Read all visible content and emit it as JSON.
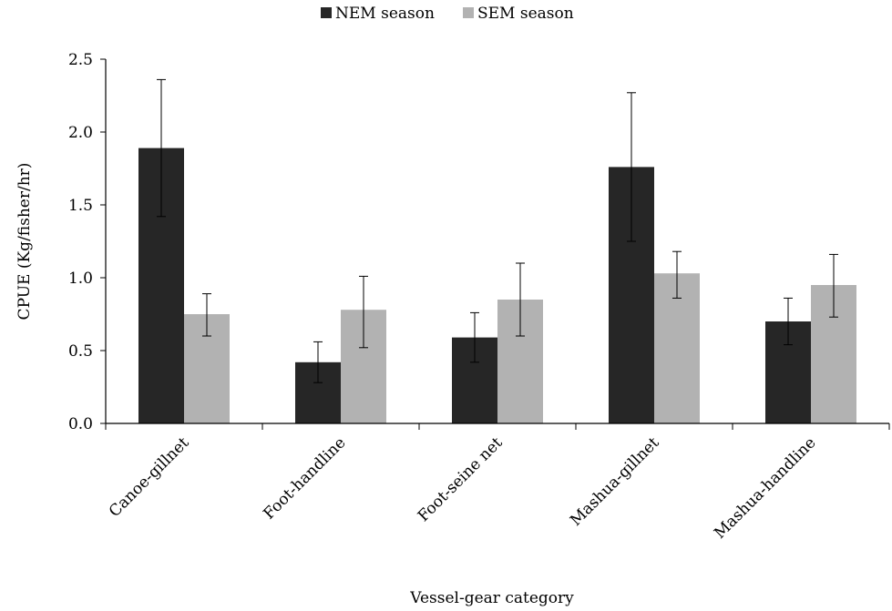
{
  "chart_data": {
    "type": "bar",
    "title": "",
    "xlabel": "Vessel-gear category",
    "ylabel": "CPUE (Kg/fisher/hr)",
    "categories": [
      "Canoe-gillnet",
      "Foot-handline",
      "Foot-seine net",
      "Mashua-gillnet",
      "Mashua-handline"
    ],
    "series": [
      {
        "name": "NEM season",
        "color": "#262626",
        "values": [
          1.89,
          0.42,
          0.59,
          1.76,
          0.7
        ],
        "err_low": [
          1.42,
          0.28,
          0.42,
          1.25,
          0.54
        ],
        "err_high": [
          2.36,
          0.56,
          0.76,
          2.27,
          0.86
        ]
      },
      {
        "name": "SEM season",
        "color": "#b2b2b2",
        "values": [
          0.75,
          0.78,
          0.85,
          1.03,
          0.95
        ],
        "err_low": [
          0.6,
          0.52,
          0.6,
          0.86,
          0.73
        ],
        "err_high": [
          0.89,
          1.01,
          1.1,
          1.18,
          1.16
        ]
      }
    ],
    "ylim": [
      0,
      2.5
    ],
    "yticks": [
      "0.0",
      "0.5",
      "1.0",
      "1.5",
      "2.0",
      "2.5"
    ],
    "legend_position": "top-center",
    "grid": false
  }
}
